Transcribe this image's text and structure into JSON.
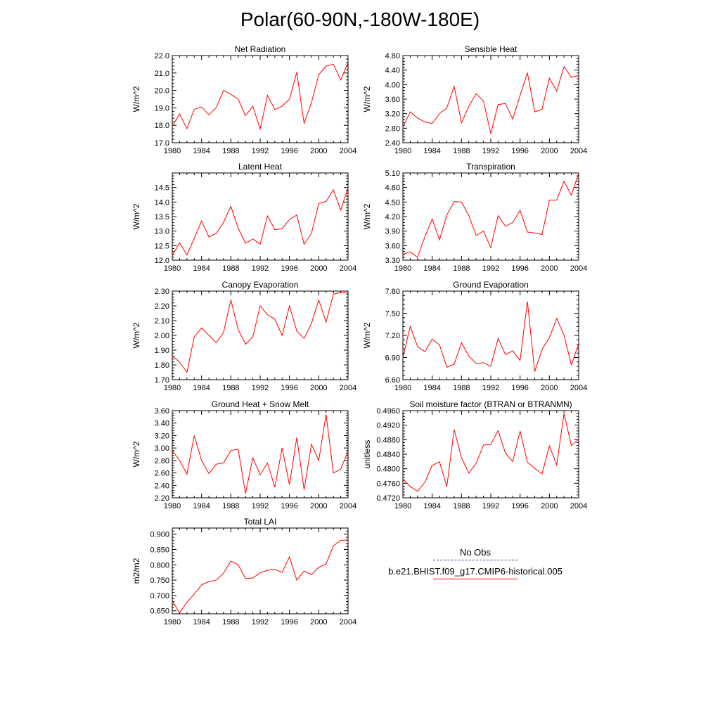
{
  "title": "Polar(60-90N,-180W-180E)",
  "colors": {
    "model_line": "#ff0000",
    "obs_line": "#3a3a8c"
  },
  "legend": {
    "obs_label": "No Obs",
    "model_label": "b.e21.BHIST.f09_g17.CMIP6-historical.005"
  },
  "chart_data": [
    {
      "type": "line",
      "title": "Net Radiation",
      "xlabel": "",
      "ylabel": "W/m^2",
      "xlim": [
        1980,
        2004
      ],
      "ylim": [
        17.0,
        22.0
      ],
      "yticks": [
        17.0,
        18.0,
        19.0,
        20.0,
        21.0,
        22.0
      ],
      "ydigits": 1,
      "xticks": [
        1980,
        1984,
        1988,
        1992,
        1996,
        2000,
        2004
      ],
      "x": [
        1980,
        1981,
        1982,
        1983,
        1984,
        1985,
        1986,
        1987,
        1988,
        1989,
        1990,
        1991,
        1992,
        1993,
        1994,
        1995,
        1996,
        1997,
        1998,
        1999,
        2000,
        2001,
        2002,
        2003,
        2004
      ],
      "series": [
        {
          "values": [
            17.95,
            18.65,
            17.8,
            18.92,
            19.05,
            18.6,
            19.02,
            20.0,
            19.78,
            19.5,
            18.55,
            19.1,
            17.78,
            19.72,
            18.9,
            19.1,
            19.5,
            21.05,
            18.1,
            19.3,
            20.9,
            21.4,
            21.5,
            20.6,
            21.6
          ]
        }
      ]
    },
    {
      "type": "line",
      "title": "Sensible Heat",
      "xlabel": "",
      "ylabel": "W/m^2",
      "xlim": [
        1980,
        2004
      ],
      "ylim": [
        2.4,
        4.8
      ],
      "yticks": [
        2.4,
        2.8,
        3.2,
        3.6,
        4.0,
        4.4,
        4.8
      ],
      "ydigits": 2,
      "xticks": [
        1980,
        1984,
        1988,
        1992,
        1996,
        2000,
        2004
      ],
      "x": [
        1980,
        1981,
        1982,
        1983,
        1984,
        1985,
        1986,
        1987,
        1988,
        1989,
        1990,
        1991,
        1992,
        1993,
        1994,
        1995,
        1996,
        1997,
        1998,
        1999,
        2000,
        2001,
        2002,
        2003,
        2004
      ],
      "series": [
        {
          "values": [
            2.83,
            3.25,
            3.08,
            2.97,
            2.93,
            3.2,
            3.36,
            3.95,
            2.95,
            3.4,
            3.75,
            3.55,
            2.65,
            3.45,
            3.48,
            3.05,
            3.7,
            4.33,
            3.25,
            3.32,
            4.18,
            3.82,
            4.5,
            4.2,
            4.25
          ]
        }
      ]
    },
    {
      "type": "line",
      "title": "Latent Heat",
      "xlabel": "",
      "ylabel": "W/m^2",
      "xlim": [
        1980,
        2004
      ],
      "ylim": [
        12.0,
        15.0
      ],
      "yticks": [
        12.0,
        12.5,
        13.0,
        13.5,
        14.0,
        14.5
      ],
      "ydigits": 1,
      "xticks": [
        1980,
        1984,
        1988,
        1992,
        1996,
        2000,
        2004
      ],
      "x": [
        1980,
        1981,
        1982,
        1983,
        1984,
        1985,
        1986,
        1987,
        1988,
        1989,
        1990,
        1991,
        1992,
        1993,
        1994,
        1995,
        1996,
        1997,
        1998,
        1999,
        2000,
        2001,
        2002,
        2003,
        2004
      ],
      "series": [
        {
          "values": [
            12.15,
            12.6,
            12.18,
            12.75,
            13.35,
            12.8,
            12.92,
            13.3,
            13.85,
            13.1,
            12.58,
            12.73,
            12.55,
            13.52,
            13.05,
            13.08,
            13.4,
            13.55,
            12.55,
            12.92,
            13.95,
            14.02,
            14.42,
            13.72,
            14.5
          ]
        }
      ]
    },
    {
      "type": "line",
      "title": "Transpiration",
      "xlabel": "",
      "ylabel": "W/m^2",
      "xlim": [
        1980,
        2004
      ],
      "ylim": [
        3.3,
        5.1
      ],
      "yticks": [
        3.3,
        3.6,
        3.9,
        4.2,
        4.5,
        4.8,
        5.1
      ],
      "ydigits": 2,
      "xticks": [
        1980,
        1984,
        1988,
        1992,
        1996,
        2000,
        2004
      ],
      "x": [
        1980,
        1981,
        1982,
        1983,
        1984,
        1985,
        1986,
        1987,
        1988,
        1989,
        1990,
        1991,
        1992,
        1993,
        1994,
        1995,
        1996,
        1997,
        1998,
        1999,
        2000,
        2001,
        2002,
        2003,
        2004
      ],
      "series": [
        {
          "values": [
            3.42,
            3.47,
            3.36,
            3.78,
            4.15,
            3.72,
            4.23,
            4.51,
            4.5,
            4.22,
            3.81,
            3.9,
            3.56,
            4.22,
            4.0,
            4.08,
            4.33,
            3.88,
            3.86,
            3.83,
            4.54,
            4.54,
            4.93,
            4.64,
            5.1
          ]
        }
      ]
    },
    {
      "type": "line",
      "title": "Canopy Evaporation",
      "xlabel": "",
      "ylabel": "W/m^2",
      "xlim": [
        1980,
        2004
      ],
      "ylim": [
        1.7,
        2.3
      ],
      "yticks": [
        1.7,
        1.8,
        1.9,
        2.0,
        2.1,
        2.2,
        2.3
      ],
      "ydigits": 2,
      "xticks": [
        1980,
        1984,
        1988,
        1992,
        1996,
        2000,
        2004
      ],
      "x": [
        1980,
        1981,
        1982,
        1983,
        1984,
        1985,
        1986,
        1987,
        1988,
        1989,
        1990,
        1991,
        1992,
        1993,
        1994,
        1995,
        1996,
        1997,
        1998,
        1999,
        2000,
        2001,
        2002,
        2003,
        2004
      ],
      "series": [
        {
          "values": [
            1.86,
            1.82,
            1.75,
            1.99,
            2.05,
            2.0,
            1.95,
            2.02,
            2.24,
            2.04,
            1.94,
            1.99,
            2.2,
            2.14,
            2.11,
            2.0,
            2.2,
            2.03,
            1.98,
            2.08,
            2.24,
            2.09,
            2.28,
            2.29,
            2.29
          ]
        }
      ]
    },
    {
      "type": "line",
      "title": "Ground Evaporation",
      "xlabel": "",
      "ylabel": "W/m^2",
      "xlim": [
        1980,
        2004
      ],
      "ylim": [
        6.6,
        7.8
      ],
      "yticks": [
        6.6,
        6.9,
        7.2,
        7.5,
        7.8
      ],
      "ydigits": 2,
      "xticks": [
        1980,
        1984,
        1988,
        1992,
        1996,
        2000,
        2004
      ],
      "x": [
        1980,
        1981,
        1982,
        1983,
        1984,
        1985,
        1986,
        1987,
        1988,
        1989,
        1990,
        1991,
        1992,
        1993,
        1994,
        1995,
        1996,
        1997,
        1998,
        1999,
        2000,
        2001,
        2002,
        2003,
        2004
      ],
      "series": [
        {
          "values": [
            6.9,
            7.32,
            7.05,
            6.98,
            7.15,
            7.07,
            6.77,
            6.81,
            7.1,
            6.92,
            6.82,
            6.83,
            6.78,
            7.16,
            6.94,
            6.99,
            6.86,
            7.66,
            6.71,
            7.01,
            7.17,
            7.43,
            7.2,
            6.8,
            7.09
          ]
        }
      ]
    },
    {
      "type": "line",
      "title": "Ground Heat + Snow Melt",
      "xlabel": "",
      "ylabel": "W/m^2",
      "xlim": [
        1980,
        2004
      ],
      "ylim": [
        2.2,
        3.6
      ],
      "yticks": [
        2.2,
        2.4,
        2.6,
        2.8,
        3.0,
        3.2,
        3.4,
        3.6
      ],
      "ydigits": 2,
      "xticks": [
        1980,
        1984,
        1988,
        1992,
        1996,
        2000,
        2004
      ],
      "x": [
        1980,
        1981,
        1982,
        1983,
        1984,
        1985,
        1986,
        1987,
        1988,
        1989,
        1990,
        1991,
        1992,
        1993,
        1994,
        1995,
        1996,
        1997,
        1998,
        1999,
        2000,
        2001,
        2002,
        2003,
        2004
      ],
      "series": [
        {
          "values": [
            2.96,
            2.8,
            2.58,
            3.2,
            2.8,
            2.59,
            2.74,
            2.76,
            2.96,
            2.98,
            2.27,
            2.84,
            2.57,
            2.76,
            2.37,
            3.0,
            2.41,
            3.17,
            2.33,
            3.06,
            2.8,
            3.54,
            2.6,
            2.66,
            2.95
          ]
        }
      ]
    },
    {
      "type": "line",
      "title": "Soil moisture factor (BTRAN or BTRANMN)",
      "xlabel": "",
      "ylabel": "unitless",
      "xlim": [
        1980,
        2004
      ],
      "ylim": [
        0.472,
        0.496
      ],
      "yticks": [
        0.472,
        0.476,
        0.48,
        0.484,
        0.488,
        0.492,
        0.496
      ],
      "ydigits": 4,
      "xticks": [
        1980,
        1984,
        1988,
        1992,
        1996,
        2000,
        2004
      ],
      "x": [
        1980,
        1981,
        1982,
        1983,
        1984,
        1985,
        1986,
        1987,
        1988,
        1989,
        1990,
        1991,
        1992,
        1993,
        1994,
        1995,
        1996,
        1997,
        1998,
        1999,
        2000,
        2001,
        2002,
        2003,
        2004
      ],
      "series": [
        {
          "values": [
            0.4772,
            0.4751,
            0.4738,
            0.4763,
            0.4809,
            0.4819,
            0.4751,
            0.4908,
            0.483,
            0.4788,
            0.4815,
            0.4865,
            0.4867,
            0.4905,
            0.4843,
            0.482,
            0.4904,
            0.4818,
            0.4801,
            0.4786,
            0.4863,
            0.4811,
            0.4952,
            0.4864,
            0.4881
          ]
        }
      ]
    },
    {
      "type": "line",
      "title": "Total LAI",
      "xlabel": "",
      "ylabel": "m2/m2",
      "xlim": [
        1980,
        2004
      ],
      "ylim": [
        0.64,
        0.92
      ],
      "yticks": [
        0.65,
        0.7,
        0.75,
        0.8,
        0.85,
        0.9
      ],
      "ydigits": 3,
      "xticks": [
        1980,
        1984,
        1988,
        1992,
        1996,
        2000,
        2004
      ],
      "x": [
        1980,
        1981,
        1982,
        1983,
        1984,
        1985,
        1986,
        1987,
        1988,
        1989,
        1990,
        1991,
        1992,
        1993,
        1994,
        1995,
        1996,
        1997,
        1998,
        1999,
        2000,
        2001,
        2002,
        2003,
        2004
      ],
      "series": [
        {
          "values": [
            0.683,
            0.643,
            0.678,
            0.704,
            0.735,
            0.745,
            0.75,
            0.773,
            0.812,
            0.8,
            0.755,
            0.757,
            0.774,
            0.782,
            0.786,
            0.775,
            0.826,
            0.75,
            0.78,
            0.768,
            0.792,
            0.803,
            0.862,
            0.88,
            0.881
          ]
        }
      ]
    }
  ]
}
